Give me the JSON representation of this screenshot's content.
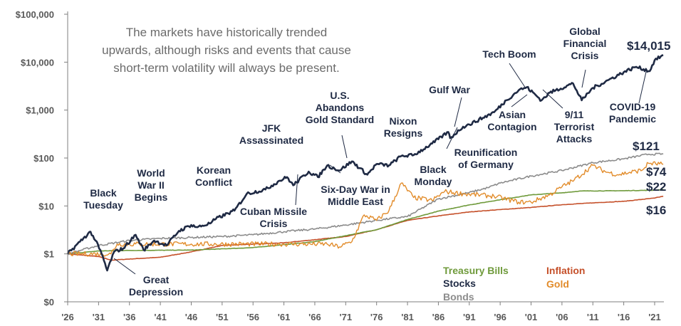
{
  "chart_data": {
    "type": "line",
    "title": "",
    "xlabel": "",
    "ylabel": "",
    "y_scale": "log",
    "ylim": [
      0.1,
      100000
    ],
    "xlim": [
      1926,
      2022.5
    ],
    "grid": false,
    "intro_text": [
      "The markets have historically trended",
      "upwards, although risks and events that cause",
      "short-term volatility will always be present."
    ],
    "y_ticks": [
      {
        "value": 100000,
        "label": "$100,000"
      },
      {
        "value": 10000,
        "label": "$10,000"
      },
      {
        "value": 1000,
        "label": "$1,000"
      },
      {
        "value": 100,
        "label": "$100"
      },
      {
        "value": 10,
        "label": "$10"
      },
      {
        "value": 1,
        "label": "$1"
      },
      {
        "value": 0.1,
        "label": "$0"
      }
    ],
    "x_ticks": [
      {
        "value": 1926,
        "label": "'26"
      },
      {
        "value": 1931,
        "label": "'31"
      },
      {
        "value": 1936,
        "label": "'36"
      },
      {
        "value": 1941,
        "label": "'41"
      },
      {
        "value": 1946,
        "label": "'46"
      },
      {
        "value": 1951,
        "label": "'51"
      },
      {
        "value": 1956,
        "label": "'56"
      },
      {
        "value": 1961,
        "label": "'61"
      },
      {
        "value": 1966,
        "label": "'66"
      },
      {
        "value": 1971,
        "label": "'71"
      },
      {
        "value": 1976,
        "label": "'76"
      },
      {
        "value": 1981,
        "label": "'81"
      },
      {
        "value": 1986,
        "label": "'86"
      },
      {
        "value": 1991,
        "label": "'91"
      },
      {
        "value": 1996,
        "label": "'96"
      },
      {
        "value": 2001,
        "label": "'01"
      },
      {
        "value": 2006,
        "label": "'06"
      },
      {
        "value": 2011,
        "label": "'11"
      },
      {
        "value": 2016,
        "label": "'16"
      },
      {
        "value": 2021,
        "label": "'21"
      }
    ],
    "series": [
      {
        "name": "Inflation",
        "key": "inflation",
        "color": "#c5502a",
        "width": 1.6,
        "points": [
          [
            1926,
            1.0
          ],
          [
            1931,
            0.88
          ],
          [
            1933,
            0.74
          ],
          [
            1941,
            0.85
          ],
          [
            1946,
            1.1
          ],
          [
            1951,
            1.5
          ],
          [
            1961,
            1.7
          ],
          [
            1971,
            2.3
          ],
          [
            1976,
            3.2
          ],
          [
            1981,
            5.0
          ],
          [
            1986,
            6.2
          ],
          [
            1991,
            7.5
          ],
          [
            1996,
            8.4
          ],
          [
            2001,
            9.3
          ],
          [
            2006,
            10.6
          ],
          [
            2011,
            11.6
          ],
          [
            2016,
            12.5
          ],
          [
            2021,
            14.6
          ],
          [
            2022.4,
            16
          ]
        ]
      },
      {
        "name": "Treasury Bills",
        "key": "tbills",
        "color": "#6f9a3b",
        "width": 1.6,
        "points": [
          [
            1926,
            1.0
          ],
          [
            1931,
            1.15
          ],
          [
            1936,
            1.18
          ],
          [
            1946,
            1.2
          ],
          [
            1956,
            1.35
          ],
          [
            1966,
            1.8
          ],
          [
            1971,
            2.4
          ],
          [
            1976,
            3.2
          ],
          [
            1981,
            5.2
          ],
          [
            1986,
            7.8
          ],
          [
            1991,
            10.5
          ],
          [
            1996,
            13.5
          ],
          [
            2001,
            17.0
          ],
          [
            2006,
            18.8
          ],
          [
            2009,
            20.5
          ],
          [
            2016,
            20.8
          ],
          [
            2021,
            21.3
          ],
          [
            2022.4,
            22
          ]
        ]
      },
      {
        "name": "Bonds",
        "key": "bonds",
        "color": "#8c8c8c",
        "width": 1.6,
        "points": [
          [
            1926,
            1.0
          ],
          [
            1931,
            1.5
          ],
          [
            1936,
            1.9
          ],
          [
            1941,
            2.1
          ],
          [
            1946,
            2.2
          ],
          [
            1951,
            2.3
          ],
          [
            1956,
            2.5
          ],
          [
            1961,
            2.9
          ],
          [
            1966,
            3.3
          ],
          [
            1971,
            4.0
          ],
          [
            1976,
            5.0
          ],
          [
            1981,
            6.0
          ],
          [
            1986,
            14.0
          ],
          [
            1991,
            19.0
          ],
          [
            1994,
            24.0
          ],
          [
            1996,
            30.0
          ],
          [
            2001,
            42.0
          ],
          [
            2006,
            55.0
          ],
          [
            2011,
            80.0
          ],
          [
            2016,
            96.0
          ],
          [
            2020,
            120.0
          ],
          [
            2022.4,
            121
          ]
        ]
      },
      {
        "name": "Gold",
        "key": "gold",
        "color": "#e28c2b",
        "width": 1.4,
        "points": [
          [
            1926,
            1.0
          ],
          [
            1933,
            1.0
          ],
          [
            1934,
            1.6
          ],
          [
            1960,
            1.6
          ],
          [
            1968,
            1.6
          ],
          [
            1970,
            1.4
          ],
          [
            1972,
            1.8
          ],
          [
            1974,
            6.5
          ],
          [
            1976,
            5.0
          ],
          [
            1978,
            8.0
          ],
          [
            1980,
            30.0
          ],
          [
            1982,
            15.0
          ],
          [
            1985,
            13.0
          ],
          [
            1987,
            20.0
          ],
          [
            1990,
            18.0
          ],
          [
            1995,
            16.0
          ],
          [
            1999,
            12.0
          ],
          [
            2001,
            12.0
          ],
          [
            2004,
            17.0
          ],
          [
            2006,
            25.0
          ],
          [
            2008,
            35.0
          ],
          [
            2011,
            70.0
          ],
          [
            2013,
            52.0
          ],
          [
            2015,
            45.0
          ],
          [
            2019,
            56.0
          ],
          [
            2020,
            78.0
          ],
          [
            2022.4,
            74
          ]
        ]
      },
      {
        "name": "Stocks",
        "key": "stocks",
        "color": "#1f2a44",
        "width": 2.6,
        "points": [
          [
            1926,
            1.0
          ],
          [
            1928,
            1.8
          ],
          [
            1929.7,
            2.9
          ],
          [
            1930.5,
            1.9
          ],
          [
            1931.5,
            1.0
          ],
          [
            1932.4,
            0.45
          ],
          [
            1933.5,
            1.1
          ],
          [
            1935,
            1.3
          ],
          [
            1937,
            2.5
          ],
          [
            1938.3,
            1.2
          ],
          [
            1940,
            1.9
          ],
          [
            1942,
            1.5
          ],
          [
            1944,
            3.0
          ],
          [
            1946,
            4.0
          ],
          [
            1947,
            3.6
          ],
          [
            1949,
            4.3
          ],
          [
            1950,
            5.4
          ],
          [
            1953,
            8.0
          ],
          [
            1955,
            18.0
          ],
          [
            1958,
            22.0
          ],
          [
            1960,
            32.0
          ],
          [
            1961.5,
            40.0
          ],
          [
            1962.5,
            27.0
          ],
          [
            1965,
            52.0
          ],
          [
            1966.5,
            40.0
          ],
          [
            1968,
            70.0
          ],
          [
            1970,
            55.0
          ],
          [
            1972,
            85.0
          ],
          [
            1974.5,
            45.0
          ],
          [
            1976,
            75.0
          ],
          [
            1978,
            70.0
          ],
          [
            1980,
            110.0
          ],
          [
            1982,
            115.0
          ],
          [
            1985,
            200.0
          ],
          [
            1987.6,
            350.0
          ],
          [
            1987.9,
            260.0
          ],
          [
            1990,
            450.0
          ],
          [
            1991,
            500.0
          ],
          [
            1995,
            900.0
          ],
          [
            1997,
            1600.0
          ],
          [
            1999,
            2600.0
          ],
          [
            2000.3,
            3000.0
          ],
          [
            2002.7,
            1600.0
          ],
          [
            2004,
            2300.0
          ],
          [
            2007.8,
            3600.0
          ],
          [
            2009.2,
            1600.0
          ],
          [
            2011,
            2900.0
          ],
          [
            2013,
            3900.0
          ],
          [
            2016,
            6200.0
          ],
          [
            2018,
            8000.0
          ],
          [
            2020.2,
            6500.0
          ],
          [
            2021,
            11000.0
          ],
          [
            2022.4,
            14015.0
          ]
        ]
      }
    ],
    "end_labels": [
      {
        "key": "stocks",
        "text": "$14,015"
      },
      {
        "key": "bonds",
        "text": "$121"
      },
      {
        "key": "gold",
        "text": "$74"
      },
      {
        "key": "tbills",
        "text": "$22"
      },
      {
        "key": "inflation",
        "text": "$16"
      }
    ],
    "legend": [
      {
        "text": "Treasury Bills",
        "color": "#6f9a3b"
      },
      {
        "text": "Stocks",
        "color": "#1f2a44"
      },
      {
        "text": "Bonds",
        "color": "#8c8c8c"
      },
      {
        "text": "Inflation",
        "color": "#c5502a"
      },
      {
        "text": "Gold",
        "color": "#e28c2b"
      }
    ],
    "annotations": [
      {
        "name": "black-tuesday",
        "lines": [
          "Black",
          "Tuesday"
        ]
      },
      {
        "name": "great-depression",
        "lines": [
          "Great",
          "Depression"
        ]
      },
      {
        "name": "world-war-ii",
        "lines": [
          "World",
          "War II",
          "Begins"
        ]
      },
      {
        "name": "korean-conflict",
        "lines": [
          "Korean",
          "Conflict"
        ]
      },
      {
        "name": "jfk-assassinated",
        "lines": [
          "JFK",
          "Assassinated"
        ]
      },
      {
        "name": "cuban-missile-crisis",
        "lines": [
          "Cuban Missile",
          "Crisis"
        ]
      },
      {
        "name": "us-abandons-gold-standard",
        "lines": [
          "U.S.",
          "Abandons",
          "Gold Standard"
        ]
      },
      {
        "name": "six-day-war",
        "lines": [
          "Six-Day War in",
          "Middle East"
        ]
      },
      {
        "name": "nixon-resigns",
        "lines": [
          "Nixon",
          "Resigns"
        ]
      },
      {
        "name": "black-monday",
        "lines": [
          "Black",
          "Monday"
        ]
      },
      {
        "name": "gulf-war",
        "lines": [
          "Gulf War"
        ]
      },
      {
        "name": "reunification-of-germany",
        "lines": [
          "Reunification",
          "of Germany"
        ]
      },
      {
        "name": "tech-boom",
        "lines": [
          "Tech Boom"
        ]
      },
      {
        "name": "asian-contagion",
        "lines": [
          "Asian",
          "Contagion"
        ]
      },
      {
        "name": "global-financial-crisis",
        "lines": [
          "Global",
          "Financial",
          "Crisis"
        ]
      },
      {
        "name": "terrorist-attacks",
        "lines": [
          "9/11",
          "Terrorist",
          "Attacks"
        ]
      },
      {
        "name": "covid-19-pandemic",
        "lines": [
          "COVID-19",
          "Pandemic"
        ]
      }
    ]
  }
}
